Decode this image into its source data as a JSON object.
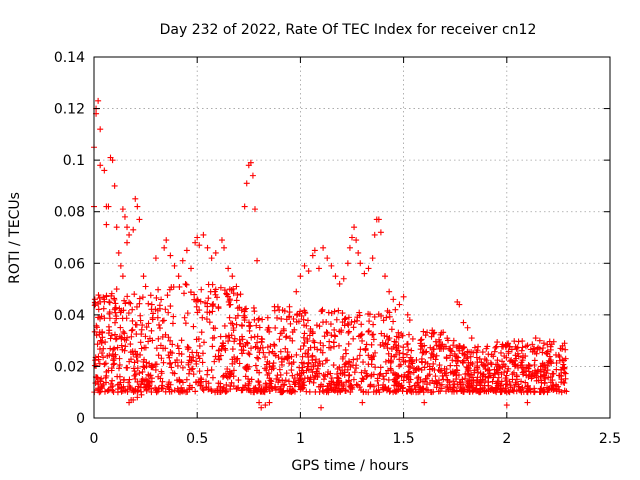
{
  "chart_data": {
    "type": "scatter",
    "title": "Day 232 of 2022, Rate Of TEC Index for receiver cn12",
    "xlabel": "GPS time / hours",
    "ylabel": "ROTI / TECUs",
    "xlim": [
      0,
      2.5
    ],
    "ylim": [
      0,
      0.14
    ],
    "xticks": [
      "0",
      "0.5",
      "1",
      "1.5",
      "2",
      "2.5"
    ],
    "yticks": [
      "0",
      "0.02",
      "0.04",
      "0.06",
      "0.08",
      "0.1",
      "0.12",
      "0.14"
    ],
    "grid": true,
    "marker": "+",
    "color": "#ff0000",
    "series": [
      {
        "name": "ROTI",
        "points": [
          [
            0.0,
            0.082
          ],
          [
            0.0,
            0.105
          ],
          [
            0.01,
            0.118
          ],
          [
            0.01,
            0.12
          ],
          [
            0.02,
            0.123
          ],
          [
            0.03,
            0.112
          ],
          [
            0.03,
            0.098
          ],
          [
            0.05,
            0.096
          ],
          [
            0.06,
            0.082
          ],
          [
            0.06,
            0.075
          ],
          [
            0.07,
            0.082
          ],
          [
            0.08,
            0.101
          ],
          [
            0.09,
            0.1
          ],
          [
            0.1,
            0.09
          ],
          [
            0.11,
            0.074
          ],
          [
            0.14,
            0.081
          ],
          [
            0.15,
            0.078
          ],
          [
            0.16,
            0.074
          ],
          [
            0.16,
            0.068
          ],
          [
            0.17,
            0.071
          ],
          [
            0.19,
            0.073
          ],
          [
            0.2,
            0.085
          ],
          [
            0.21,
            0.082
          ],
          [
            0.22,
            0.077
          ],
          [
            0.02,
            0.039
          ],
          [
            0.03,
            0.045
          ],
          [
            0.05,
            0.046
          ],
          [
            0.12,
            0.064
          ],
          [
            0.13,
            0.059
          ],
          [
            0.14,
            0.055
          ],
          [
            0.1,
            0.042
          ],
          [
            0.11,
            0.05
          ],
          [
            0.24,
            0.055
          ],
          [
            0.25,
            0.051
          ],
          [
            0.28,
            0.044
          ],
          [
            0.3,
            0.062
          ],
          [
            0.34,
            0.066
          ],
          [
            0.35,
            0.069
          ],
          [
            0.37,
            0.063
          ],
          [
            0.39,
            0.059
          ],
          [
            0.41,
            0.055
          ],
          [
            0.43,
            0.061
          ],
          [
            0.45,
            0.065
          ],
          [
            0.47,
            0.058
          ],
          [
            0.49,
            0.068
          ],
          [
            0.5,
            0.07
          ],
          [
            0.51,
            0.067
          ],
          [
            0.53,
            0.071
          ],
          [
            0.55,
            0.066
          ],
          [
            0.57,
            0.062
          ],
          [
            0.59,
            0.064
          ],
          [
            0.62,
            0.069
          ],
          [
            0.63,
            0.066
          ],
          [
            0.65,
            0.058
          ],
          [
            0.67,
            0.055
          ],
          [
            0.69,
            0.051
          ],
          [
            0.71,
            0.048
          ],
          [
            0.73,
            0.082
          ],
          [
            0.74,
            0.091
          ],
          [
            0.75,
            0.098
          ],
          [
            0.76,
            0.099
          ],
          [
            0.77,
            0.094
          ],
          [
            0.78,
            0.081
          ],
          [
            0.79,
            0.061
          ],
          [
            0.98,
            0.049
          ],
          [
            1.0,
            0.055
          ],
          [
            1.02,
            0.059
          ],
          [
            1.04,
            0.057
          ],
          [
            1.06,
            0.063
          ],
          [
            1.07,
            0.065
          ],
          [
            1.09,
            0.058
          ],
          [
            1.11,
            0.066
          ],
          [
            1.13,
            0.062
          ],
          [
            1.15,
            0.059
          ],
          [
            1.17,
            0.055
          ],
          [
            1.19,
            0.052
          ],
          [
            1.21,
            0.054
          ],
          [
            1.23,
            0.06
          ],
          [
            1.24,
            0.066
          ],
          [
            1.25,
            0.07
          ],
          [
            1.26,
            0.074
          ],
          [
            1.27,
            0.069
          ],
          [
            1.28,
            0.064
          ],
          [
            1.29,
            0.06
          ],
          [
            1.31,
            0.056
          ],
          [
            1.33,
            0.058
          ],
          [
            1.35,
            0.062
          ],
          [
            1.36,
            0.071
          ],
          [
            1.37,
            0.077
          ],
          [
            1.38,
            0.077
          ],
          [
            1.39,
            0.072
          ],
          [
            1.41,
            0.055
          ],
          [
            1.43,
            0.049
          ],
          [
            1.45,
            0.046
          ],
          [
            1.46,
            0.042
          ],
          [
            1.48,
            0.044
          ],
          [
            1.5,
            0.047
          ],
          [
            1.52,
            0.04
          ],
          [
            1.53,
            0.038
          ],
          [
            1.76,
            0.045
          ],
          [
            1.77,
            0.044
          ],
          [
            1.79,
            0.037
          ],
          [
            1.81,
            0.035
          ],
          [
            1.83,
            0.031
          ],
          [
            2.14,
            0.031
          ],
          [
            2.16,
            0.03
          ],
          [
            2.18,
            0.029
          ],
          [
            2.26,
            0.027
          ],
          [
            0.17,
            0.006
          ],
          [
            0.18,
            0.007
          ],
          [
            0.19,
            0.007
          ],
          [
            0.21,
            0.008
          ],
          [
            0.23,
            0.009
          ],
          [
            0.8,
            0.006
          ],
          [
            0.81,
            0.004
          ],
          [
            0.83,
            0.005
          ],
          [
            0.85,
            0.006
          ],
          [
            1.1,
            0.004
          ],
          [
            1.3,
            0.006
          ],
          [
            1.6,
            0.006
          ],
          [
            2.0,
            0.005
          ],
          [
            2.1,
            0.006
          ]
        ]
      }
    ]
  }
}
